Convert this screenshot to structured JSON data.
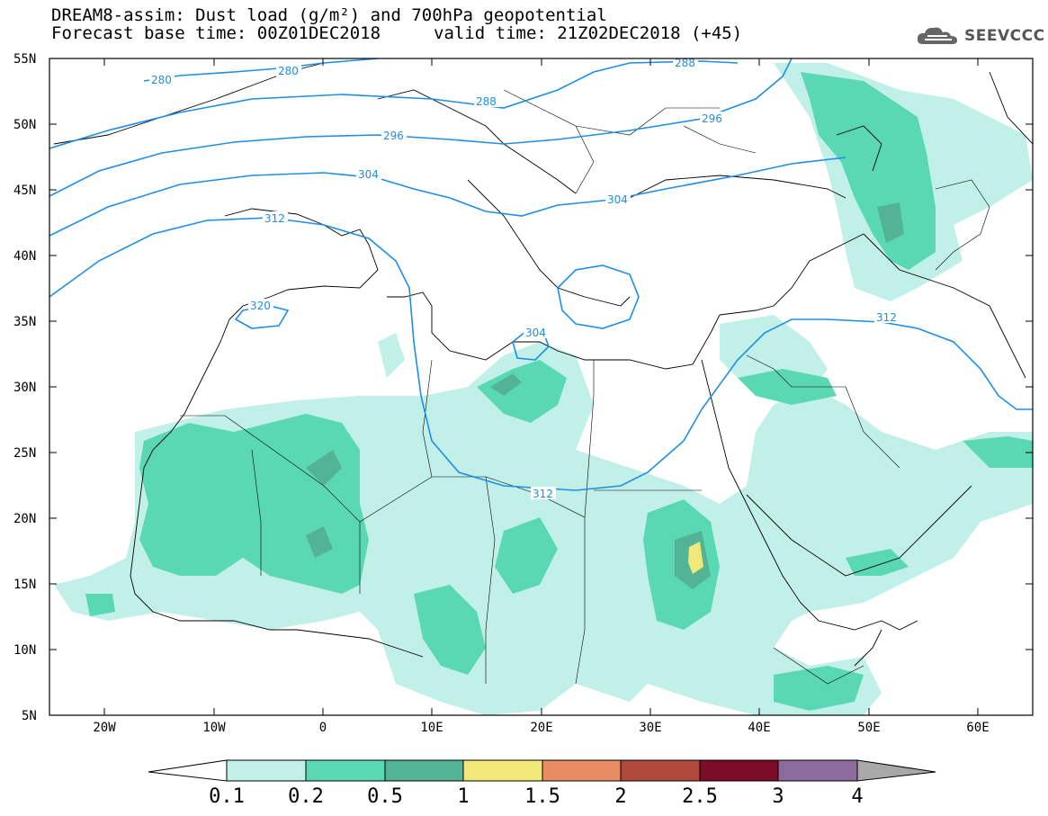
{
  "title": {
    "line1": "DREAM8-assim: Dust load (g/m²) and 700hPa geopotential",
    "line2": "Forecast base time: 00Z01DEC2018",
    "valid": "valid time: 21Z02DEC2018 (+45)"
  },
  "logo": {
    "text": "SEEVCCC",
    "icon": "cloud-logo-icon"
  },
  "map": {
    "lat_ticks": [
      "55N",
      "50N",
      "45N",
      "40N",
      "35N",
      "30N",
      "25N",
      "20N",
      "15N",
      "10N",
      "5N"
    ],
    "lon_ticks": [
      "20W",
      "10W",
      "0",
      "10E",
      "20E",
      "30E",
      "40E",
      "50E",
      "60E"
    ],
    "lon_range": [
      -25,
      65
    ],
    "lat_range": [
      5,
      55
    ],
    "geopotential_labels": [
      "280",
      "280",
      "288",
      "288",
      "296",
      "296",
      "304",
      "304",
      "304",
      "312",
      "312",
      "312",
      "320"
    ]
  },
  "colorbar": {
    "labels": [
      "0.1",
      "0.2",
      "0.5",
      "1",
      "1.5",
      "2",
      "2.5",
      "3",
      "4"
    ],
    "colors": [
      "#c0f0e8",
      "#5ad8b4",
      "#52b494",
      "#f0e878",
      "#e88c64",
      "#b0483c",
      "#7c0c28",
      "#8c6c9c",
      "#a8a8a8"
    ]
  },
  "chart_data": {
    "type": "heatmap",
    "title": "DREAM8-assim: Dust load (g/m²) and 700hPa geopotential",
    "levels": [
      0.1,
      0.2,
      0.5,
      1,
      1.5,
      2,
      2.5,
      3,
      4
    ],
    "contour_levels": [
      280,
      288,
      296,
      304,
      312,
      320
    ],
    "xlim": [
      -25,
      65
    ],
    "ylim": [
      5,
      55
    ]
  }
}
